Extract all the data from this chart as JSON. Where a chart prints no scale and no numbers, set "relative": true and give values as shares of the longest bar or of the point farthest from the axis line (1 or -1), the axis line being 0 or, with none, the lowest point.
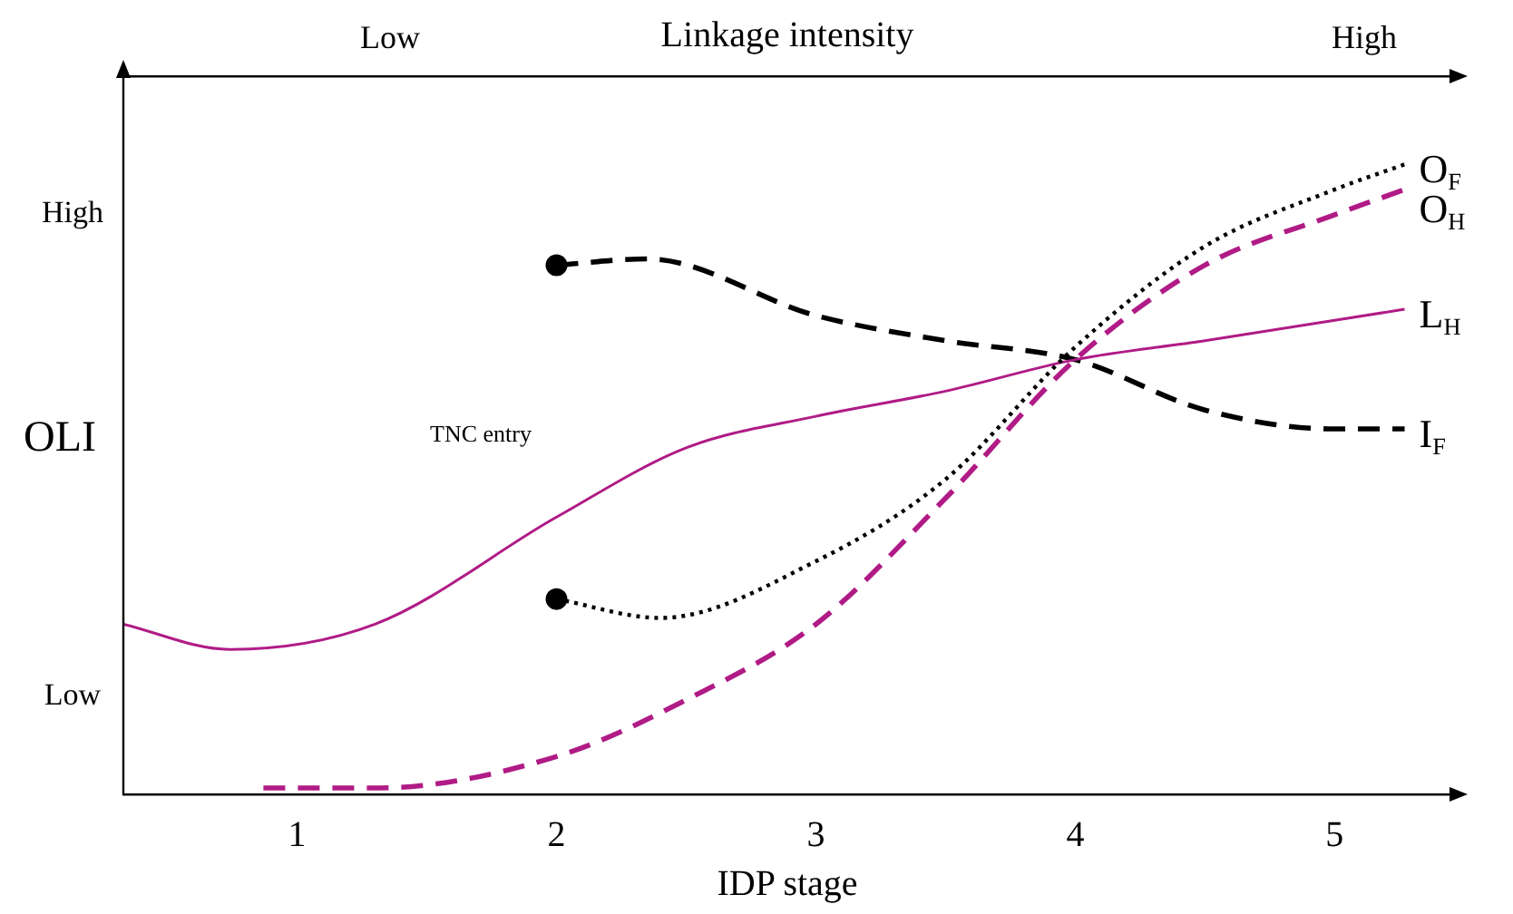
{
  "chart_data": {
    "type": "line",
    "relative": true,
    "xlabel": "IDP stage",
    "ylabel": "OLI",
    "x2label": "Linkage intensity",
    "xlim": [
      0.33,
      5.45
    ],
    "xticks": [
      1,
      2,
      3,
      4,
      5
    ],
    "legend": false,
    "grid": false,
    "annotations": [
      "High",
      "Low",
      "TNC entry",
      "Low",
      "High"
    ],
    "series": [
      {
        "name": "O$_{F}$",
        "color": "#000000",
        "line_style": "dotted",
        "x": [
          2,
          2.4,
          3,
          3.5,
          4,
          4.5,
          5,
          5.27
        ],
        "values": [
          0.31,
          0.28,
          0.37,
          0.5,
          0.71,
          0.87,
          0.96,
          1
        ]
      },
      {
        "name": "O$_{H}$",
        "color": "#b01b86",
        "line_style": "dashed",
        "x": [
          0.87,
          1.3,
          2,
          2.5,
          3,
          3.5,
          4,
          4.5,
          5,
          5.27
        ],
        "values": [
          0.01,
          0.01,
          0.06,
          0.15,
          0.27,
          0.47,
          0.69,
          0.84,
          0.92,
          0.96
        ]
      },
      {
        "name": "L$_{H}$",
        "color": "#b01b86",
        "line_style": "solid",
        "x": [
          0.33,
          0.74,
          1.3,
          2,
          2.5,
          3,
          3.5,
          4,
          4.5,
          5.27
        ],
        "values": [
          0.27,
          0.23,
          0.27,
          0.44,
          0.55,
          0.6,
          0.64,
          0.69,
          0.72,
          0.77
        ]
      },
      {
        "name": "I$_{F}$",
        "color": "#000000",
        "line_style": "dashed",
        "x": [
          2,
          2.35,
          3,
          3.5,
          4,
          4.5,
          5,
          5.27
        ],
        "values": [
          0.84,
          0.85,
          0.76,
          0.72,
          0.69,
          0.61,
          0.58,
          0.58
        ]
      },
      {
        "type": "scatter",
        "color": "#000000",
        "marker": "circle",
        "x": [
          2,
          2
        ],
        "values": [
          0.84,
          0.31
        ]
      }
    ]
  }
}
